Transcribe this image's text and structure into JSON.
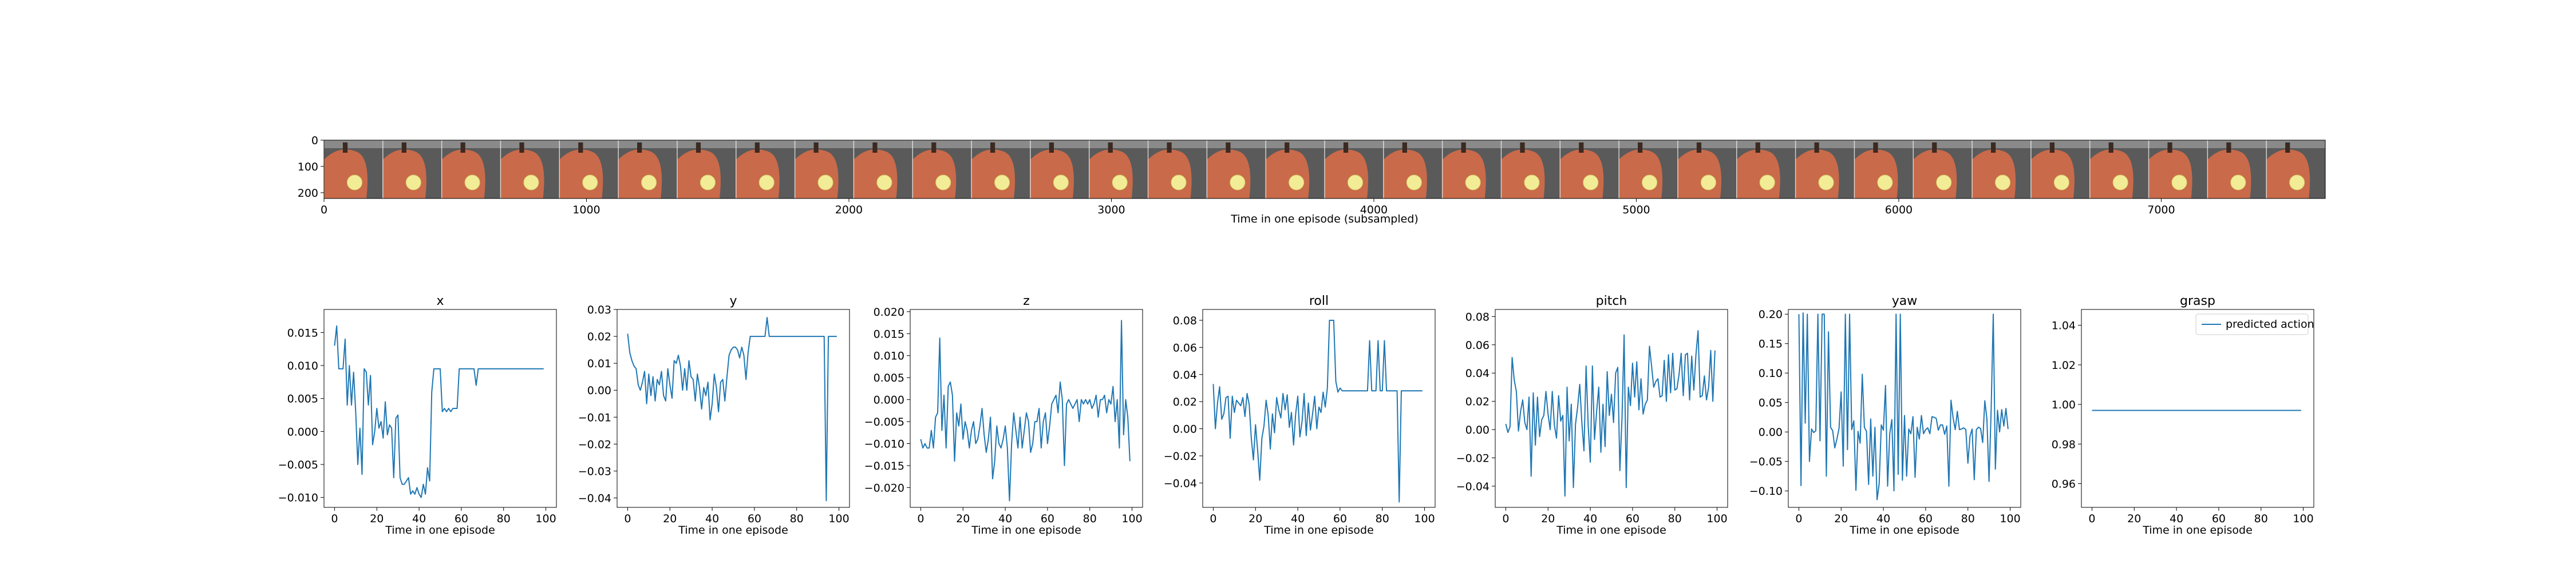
{
  "colors": {
    "series": "#1f77b4",
    "axis": "#000000",
    "background": "#ffffff",
    "frame_skin": "#c96a4a",
    "frame_gripper": "#5a5a5a",
    "frame_object": "#f2ec96"
  },
  "chart_data": [
    {
      "type": "image_strip",
      "xlabel": "Time in one episode (subsampled)",
      "xlim": [
        0,
        7625
      ],
      "ylim": [
        222,
        0
      ],
      "frame_count": 34,
      "xticks": [
        0,
        1000,
        2000,
        3000,
        4000,
        5000,
        6000,
        7000
      ],
      "yticks": [
        0,
        100,
        200
      ]
    },
    {
      "type": "line",
      "title": "x",
      "xlabel": "Time in one episode",
      "xlim": [
        -5,
        105
      ],
      "ylim": [
        -0.0115,
        0.0185
      ],
      "xticks": [
        0,
        20,
        40,
        60,
        80,
        100
      ],
      "yticks": [
        -0.01,
        -0.005,
        0.0,
        0.005,
        0.01,
        0.015
      ],
      "ytick_labels": [
        "−0.010",
        "−0.005",
        "0.000",
        "0.005",
        "0.010",
        "0.015"
      ],
      "values": [
        0.013,
        0.016,
        0.0095,
        0.0095,
        0.0095,
        0.014,
        0.004,
        0.01,
        0.004,
        0.009,
        0.003,
        -0.005,
        0.0005,
        -0.0065,
        0.0095,
        0.009,
        0.004,
        0.0085,
        -0.002,
        0.0,
        0.0035,
        0.0005,
        0.0015,
        -0.001,
        0.0045,
        -0.0005,
        0.001,
        0.0005,
        -0.007,
        0.002,
        0.0025,
        -0.007,
        -0.008,
        -0.008,
        -0.0075,
        -0.007,
        -0.0095,
        -0.009,
        -0.0095,
        -0.0085,
        -0.0095,
        -0.01,
        -0.008,
        -0.0095,
        -0.0055,
        -0.0075,
        0.006,
        0.0095,
        0.0095,
        0.0095,
        0.0095,
        0.003,
        0.0035,
        0.003,
        0.0035,
        0.003,
        0.0035,
        0.0035,
        0.0035,
        0.0095,
        0.0095,
        0.0095,
        0.0095,
        0.0095,
        0.0095,
        0.0095,
        0.0095,
        0.007,
        0.0095,
        0.0095,
        0.0095,
        0.0095,
        0.0095,
        0.0095,
        0.0095,
        0.0095,
        0.0095,
        0.0095,
        0.0095,
        0.0095,
        0.0095,
        0.0095,
        0.0095,
        0.0095,
        0.0095,
        0.0095,
        0.0095,
        0.0095,
        0.0095,
        0.0095,
        0.0095,
        0.0095,
        0.0095,
        0.0095,
        0.0095,
        0.0095,
        0.0095,
        0.0095,
        0.0095,
        0.0095
      ]
    },
    {
      "type": "line",
      "title": "y",
      "xlabel": "Time in one episode",
      "xlim": [
        -5,
        105
      ],
      "ylim": [
        -0.0435,
        0.03
      ],
      "xticks": [
        0,
        20,
        40,
        60,
        80,
        100
      ],
      "yticks": [
        -0.04,
        -0.03,
        -0.02,
        -0.01,
        0.0,
        0.01,
        0.02,
        0.03
      ],
      "ytick_labels": [
        "−0.04",
        "−0.03",
        "−0.02",
        "−0.01",
        "0.00",
        "0.01",
        "0.02",
        "0.03"
      ],
      "values": [
        0.021,
        0.014,
        0.011,
        0.009,
        0.008,
        0.002,
        0.0,
        0.003,
        0.007,
        -0.005,
        0.006,
        -0.002,
        0.005,
        -0.004,
        0.004,
        0.002,
        0.007,
        -0.002,
        -0.004,
        0.008,
        0.002,
        -0.003,
        0.011,
        0.01,
        0.013,
        0.009,
        0.0,
        0.008,
        0.0,
        0.011,
        0.005,
        0.004,
        -0.004,
        0.006,
        0.001,
        -0.007,
        0.001,
        -0.002,
        0.003,
        -0.011,
        -0.005,
        0.006,
        0.001,
        -0.008,
        0.003,
        0.004,
        -0.004,
        0.005,
        0.013,
        0.015,
        0.016,
        0.016,
        0.015,
        0.012,
        0.016,
        0.013,
        0.004,
        0.014,
        0.02,
        0.02,
        0.02,
        0.02,
        0.02,
        0.02,
        0.02,
        0.02,
        0.027,
        0.02,
        0.02,
        0.02,
        0.02,
        0.02,
        0.02,
        0.02,
        0.02,
        0.02,
        0.02,
        0.02,
        0.02,
        0.02,
        0.02,
        0.02,
        0.02,
        0.02,
        0.02,
        0.02,
        0.02,
        0.02,
        0.02,
        0.02,
        0.02,
        0.02,
        0.02,
        0.02,
        -0.041,
        0.02,
        0.02,
        0.02,
        0.02,
        0.02
      ]
    },
    {
      "type": "line",
      "title": "z",
      "xlabel": "Time in one episode",
      "xlim": [
        -5,
        105
      ],
      "ylim": [
        -0.0245,
        0.0205
      ],
      "xticks": [
        0,
        20,
        40,
        60,
        80,
        100
      ],
      "yticks": [
        -0.02,
        -0.015,
        -0.01,
        -0.005,
        0.0,
        0.005,
        0.01,
        0.015,
        0.02
      ],
      "ytick_labels": [
        "−0.020",
        "−0.015",
        "−0.010",
        "−0.005",
        "0.000",
        "0.005",
        "0.010",
        "0.015",
        "0.020"
      ],
      "values": [
        -0.009,
        -0.011,
        -0.01,
        -0.011,
        -0.011,
        -0.007,
        -0.011,
        -0.004,
        -0.003,
        0.014,
        -0.007,
        0.001,
        -0.011,
        0.003,
        0.004,
        0.001,
        -0.014,
        -0.003,
        -0.006,
        -0.001,
        -0.009,
        -0.005,
        -0.007,
        -0.011,
        -0.007,
        -0.005,
        -0.01,
        -0.009,
        -0.006,
        -0.002,
        -0.008,
        -0.012,
        -0.009,
        -0.004,
        -0.018,
        -0.014,
        -0.006,
        -0.01,
        -0.011,
        -0.009,
        -0.006,
        -0.011,
        -0.023,
        -0.01,
        -0.003,
        -0.007,
        -0.011,
        -0.004,
        -0.011,
        -0.007,
        -0.003,
        -0.005,
        -0.012,
        -0.01,
        -0.005,
        -0.005,
        -0.002,
        -0.011,
        -0.005,
        -0.003,
        -0.01,
        -0.006,
        -0.001,
        0.0,
        0.001,
        -0.003,
        0.004,
        0.0,
        -0.015,
        -0.001,
        0.0,
        -0.001,
        -0.002,
        -0.001,
        0.0,
        -0.005,
        0.0,
        -0.001,
        0.0,
        -0.001,
        0.0,
        -0.002,
        -0.001,
        0.001,
        -0.004,
        0.0,
        0.0,
        0.001,
        -0.003,
        0.0,
        -0.001,
        0.003,
        -0.005,
        0.0,
        -0.011,
        0.018,
        -0.008,
        0.0,
        -0.004,
        -0.014
      ]
    },
    {
      "type": "line",
      "title": "roll",
      "xlabel": "Time in one episode",
      "xlim": [
        -5,
        105
      ],
      "ylim": [
        -0.058,
        0.088
      ],
      "xticks": [
        0,
        20,
        40,
        60,
        80,
        100
      ],
      "yticks": [
        -0.04,
        -0.02,
        0.0,
        0.02,
        0.04,
        0.06,
        0.08
      ],
      "ytick_labels": [
        "−0.04",
        "−0.02",
        "0.00",
        "0.02",
        "0.04",
        "0.06",
        "0.08"
      ],
      "values": [
        0.033,
        0.0,
        0.019,
        0.031,
        0.007,
        0.011,
        0.023,
        0.024,
        -0.007,
        0.024,
        0.012,
        0.021,
        0.019,
        0.017,
        0.023,
        0.009,
        0.026,
        0.018,
        -0.007,
        -0.023,
        0.003,
        -0.016,
        -0.038,
        -0.007,
        0.002,
        0.021,
        0.01,
        -0.015,
        0.011,
        -0.003,
        0.023,
        0.014,
        0.008,
        0.026,
        0.014,
        0.025,
        0.001,
        0.012,
        -0.012,
        0.011,
        0.024,
        -0.006,
        0.005,
        0.026,
        -0.005,
        0.019,
        -0.001,
        0.011,
        0.024,
        0.0,
        0.016,
        0.012,
        0.027,
        0.016,
        0.03,
        0.08,
        0.08,
        0.08,
        0.035,
        0.027,
        0.03,
        0.028,
        0.028,
        0.028,
        0.028,
        0.028,
        0.028,
        0.028,
        0.028,
        0.028,
        0.028,
        0.028,
        0.028,
        0.028,
        0.065,
        0.028,
        0.028,
        0.028,
        0.065,
        0.028,
        0.028,
        0.065,
        0.028,
        0.028,
        0.028,
        0.028,
        0.028,
        0.028,
        -0.054,
        0.028,
        0.028,
        0.028,
        0.028,
        0.028,
        0.028,
        0.028,
        0.028,
        0.028,
        0.028,
        0.028
      ]
    },
    {
      "type": "line",
      "title": "pitch",
      "xlabel": "Time in one episode",
      "xlim": [
        -5,
        105
      ],
      "ylim": [
        -0.055,
        0.085
      ],
      "xticks": [
        0,
        20,
        40,
        60,
        80,
        100
      ],
      "yticks": [
        -0.04,
        -0.02,
        0.0,
        0.02,
        0.04,
        0.06,
        0.08
      ],
      "ytick_labels": [
        "−0.04",
        "−0.02",
        "0.00",
        "0.02",
        "0.04",
        "0.06",
        "0.08"
      ],
      "values": [
        0.004,
        -0.002,
        0.002,
        0.051,
        0.035,
        0.027,
        -0.001,
        0.013,
        0.021,
        0.005,
        0.0,
        0.023,
        -0.033,
        0.026,
        -0.011,
        0.023,
        -0.005,
        0.007,
        0.01,
        0.027,
        0.011,
        0.0,
        0.027,
        0.003,
        -0.006,
        0.024,
        0.006,
        0.01,
        -0.047,
        0.03,
        -0.008,
        0.018,
        -0.041,
        0.004,
        0.016,
        0.032,
        0.005,
        -0.015,
        0.045,
        0.003,
        -0.023,
        0.045,
        -0.007,
        0.013,
        0.03,
        -0.016,
        0.018,
        -0.012,
        0.041,
        0.01,
        0.025,
        0.005,
        0.04,
        0.044,
        -0.029,
        0.008,
        0.067,
        -0.041,
        0.03,
        0.017,
        0.047,
        0.023,
        0.048,
        0.014,
        0.036,
        0.011,
        0.018,
        0.021,
        0.059,
        0.045,
        0.03,
        0.034,
        0.036,
        0.023,
        0.024,
        0.049,
        0.02,
        0.053,
        0.026,
        0.054,
        0.028,
        0.029,
        0.039,
        0.054,
        0.024,
        0.053,
        0.054,
        0.021,
        0.052,
        0.028,
        0.053,
        0.07,
        0.023,
        0.024,
        0.038,
        0.021,
        0.03,
        0.056,
        0.02,
        0.056
      ]
    },
    {
      "type": "line",
      "title": "yaw",
      "xlabel": "Time in one episode",
      "xlim": [
        -5,
        105
      ],
      "ylim": [
        -0.128,
        0.208
      ],
      "xticks": [
        0,
        20,
        40,
        60,
        80,
        100
      ],
      "yticks": [
        -0.1,
        -0.05,
        0.0,
        0.05,
        0.1,
        0.15,
        0.2
      ],
      "ytick_labels": [
        "−0.10",
        "−0.05",
        "0.00",
        "0.05",
        "0.10",
        "0.15",
        "0.20"
      ],
      "values": [
        0.2,
        -0.091,
        0.202,
        0.015,
        0.2,
        -0.05,
        0.005,
        -0.001,
        0.002,
        0.2,
        -0.015,
        0.2,
        0.2,
        -0.075,
        0.17,
        0.008,
        0.002,
        -0.027,
        -0.012,
        0.006,
        0.068,
        -0.058,
        0.2,
        -0.03,
        0.2,
        0.004,
        0.019,
        -0.099,
        0.001,
        -0.019,
        0.098,
        0.008,
        0.001,
        -0.089,
        0.022,
        -0.075,
        0.008,
        -0.115,
        -0.088,
        0.012,
        0.003,
        0.079,
        -0.092,
        -0.003,
        0.021,
        -0.1,
        0.2,
        -0.072,
        0.2,
        -0.082,
        0.028,
        -0.075,
        0.005,
        -0.003,
        0.026,
        -0.077,
        0.008,
        -0.012,
        0.028,
        -0.003,
        0.004,
        0.007,
        -0.003,
        0.026,
        0.025,
        0.023,
        0.003,
        0.012,
        0.012,
        -0.004,
        0.01,
        -0.092,
        0.054,
        0.024,
        0.004,
        0.035,
        0.004,
        0.005,
        0.007,
        0.004,
        -0.053,
        -0.007,
        0.005,
        -0.081,
        0.004,
        0.008,
        0.006,
        -0.018,
        0.053,
        0.022,
        -0.084,
        0.038,
        0.2,
        -0.063,
        0.037,
        0.0,
        0.038,
        0.01,
        0.04,
        0.005
      ]
    },
    {
      "type": "line",
      "title": "grasp",
      "xlabel": "Time in one episode",
      "xlim": [
        -5,
        105
      ],
      "ylim": [
        0.948,
        1.048
      ],
      "xticks": [
        0,
        20,
        40,
        60,
        80,
        100
      ],
      "yticks": [
        0.96,
        0.98,
        1.0,
        1.02,
        1.04
      ],
      "ytick_labels": [
        "0.96",
        "0.98",
        "1.00",
        "1.02",
        "1.04"
      ],
      "legend": "predicted action",
      "legend_position": "top-right",
      "values": [
        0.997,
        0.997,
        0.997,
        0.997,
        0.997,
        0.997,
        0.997,
        0.997,
        0.997,
        0.997,
        0.997,
        0.997,
        0.997,
        0.997,
        0.997,
        0.997,
        0.997,
        0.997,
        0.997,
        0.997,
        0.997,
        0.997,
        0.997,
        0.997,
        0.997,
        0.997,
        0.997,
        0.997,
        0.997,
        0.997,
        0.997,
        0.997,
        0.997,
        0.997,
        0.997,
        0.997,
        0.997,
        0.997,
        0.997,
        0.997,
        0.997,
        0.997,
        0.997,
        0.997,
        0.997,
        0.997,
        0.997,
        0.997,
        0.997,
        0.997,
        0.997,
        0.997,
        0.997,
        0.997,
        0.997,
        0.997,
        0.997,
        0.997,
        0.997,
        0.997,
        0.997,
        0.997,
        0.997,
        0.997,
        0.997,
        0.997,
        0.997,
        0.997,
        0.997,
        0.997,
        0.997,
        0.997,
        0.997,
        0.997,
        0.997,
        0.997,
        0.997,
        0.997,
        0.997,
        0.997,
        0.997,
        0.997,
        0.997,
        0.997,
        0.997,
        0.997,
        0.997,
        0.997,
        0.997,
        0.997,
        0.997,
        0.997,
        0.997,
        0.997,
        0.997,
        0.997,
        0.997,
        0.997,
        0.997,
        0.997
      ]
    }
  ]
}
